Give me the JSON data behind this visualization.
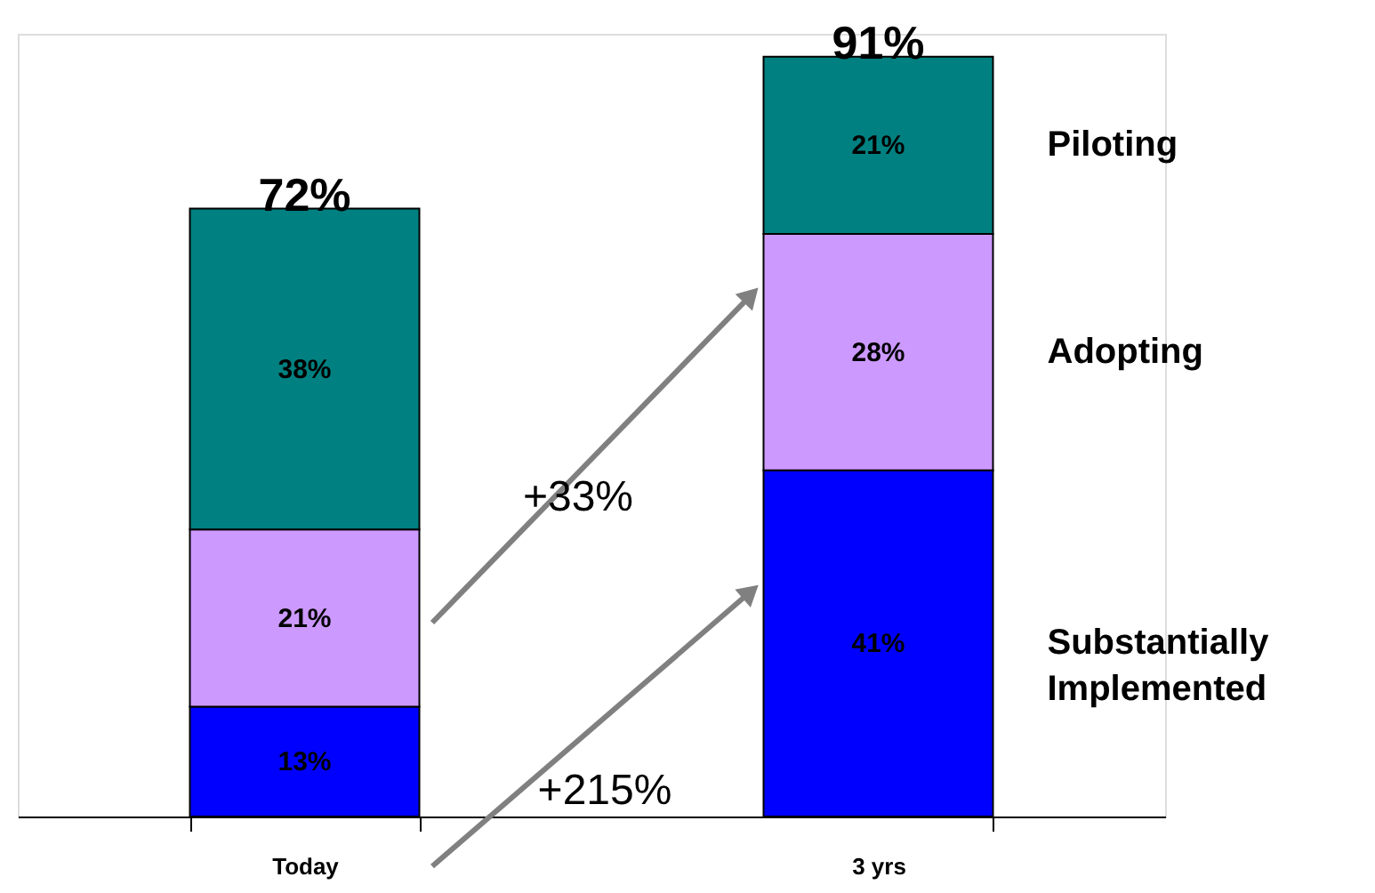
{
  "chart_data": {
    "type": "bar",
    "stacked": true,
    "categories": [
      "Today",
      "3 yrs"
    ],
    "series": [
      {
        "name": "Substantially Implemented",
        "color": "#0000ff",
        "values": [
          13,
          41
        ],
        "value_labels": [
          "13%",
          "41%"
        ]
      },
      {
        "name": "Adopting",
        "color": "#cc99ff",
        "values": [
          21,
          28
        ],
        "value_labels": [
          "21%",
          "28%"
        ]
      },
      {
        "name": "Piloting",
        "color": "#008080",
        "values": [
          38,
          21
        ],
        "value_labels": [
          "38%",
          "21%"
        ]
      }
    ],
    "totals": [
      "72%",
      "91%"
    ],
    "annotations": [
      "+33%",
      "+215%"
    ]
  }
}
